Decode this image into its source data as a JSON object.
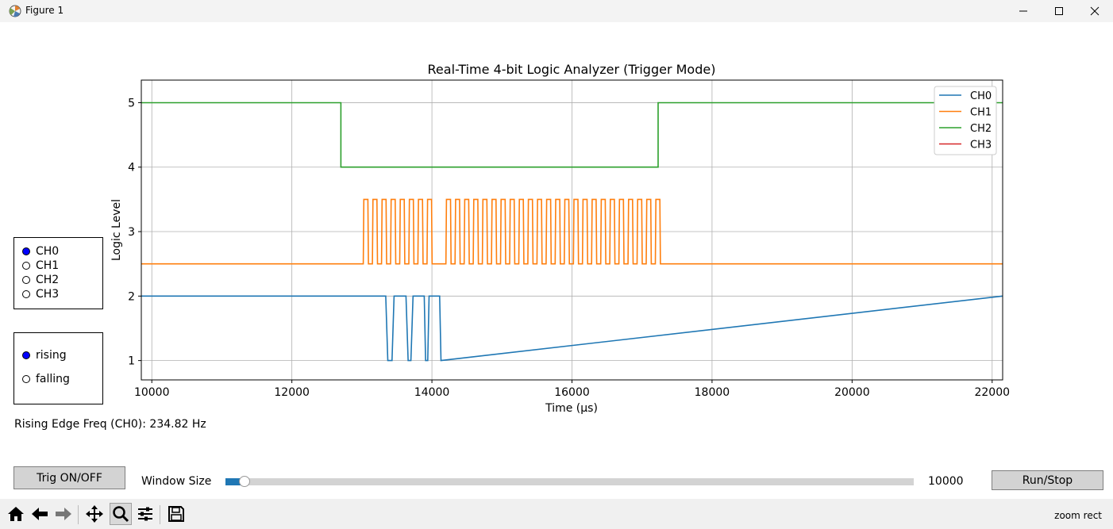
{
  "window": {
    "title": "Figure 1"
  },
  "chart_data": {
    "type": "line",
    "title": "Real-Time 4-bit Logic Analyzer (Trigger Mode)",
    "xlabel": "Time (µs)",
    "ylabel": "Logic Level",
    "xlim": [
      9850,
      22150
    ],
    "ylim": [
      0.7,
      5.35
    ],
    "xticks": [
      10000,
      12000,
      14000,
      16000,
      18000,
      20000,
      22000
    ],
    "yticks": [
      1,
      2,
      3,
      4,
      5
    ],
    "grid": true,
    "legend_position": "top-right",
    "series": [
      {
        "name": "CH0",
        "color": "#1f77b4",
        "x": [
          9850,
          13340,
          13370,
          13430,
          13460,
          13630,
          13660,
          13700,
          13730,
          13890,
          13910,
          13940,
          13960,
          14110,
          14130,
          22150
        ],
        "y": [
          2,
          2,
          1,
          1,
          2,
          2,
          1,
          1,
          2,
          2,
          1,
          1,
          2,
          2,
          1,
          2
        ]
      },
      {
        "name": "CH1",
        "color": "#ff7f0e",
        "pulse_train": {
          "base": 2.5,
          "high": 3.5,
          "segments": [
            {
              "start": 13020,
              "period": 130,
              "count": 8
            },
            {
              "start": 14200,
              "period": 130,
              "count": 24
            }
          ],
          "x_end": 22150
        }
      },
      {
        "name": "CH2",
        "color": "#2ca02c",
        "x": [
          9850,
          12700,
          12700,
          17230,
          17230,
          22150
        ],
        "y": [
          5,
          5,
          4,
          4,
          5,
          5
        ]
      },
      {
        "name": "CH3",
        "color": "#d62728",
        "x": [],
        "y": []
      }
    ]
  },
  "controls": {
    "channels": [
      "CH0",
      "CH1",
      "CH2",
      "CH3"
    ],
    "selected_channel": "CH0",
    "edges": [
      "rising",
      "falling"
    ],
    "selected_edge": "rising",
    "freq_text": "Rising Edge Freq (CH0): 234.82 Hz",
    "trig_button": "Trig ON/OFF",
    "slider_label": "Window Size",
    "slider_value": "10000",
    "slider_fraction": 0.02,
    "run_button": "Run/Stop"
  },
  "toolbar": {
    "tools": [
      "home-icon",
      "back-icon",
      "forward-icon",
      "pan-icon",
      "zoom-icon",
      "configure-subplots-icon",
      "save-icon"
    ],
    "active_tool": "zoom-icon",
    "status": "zoom rect"
  }
}
